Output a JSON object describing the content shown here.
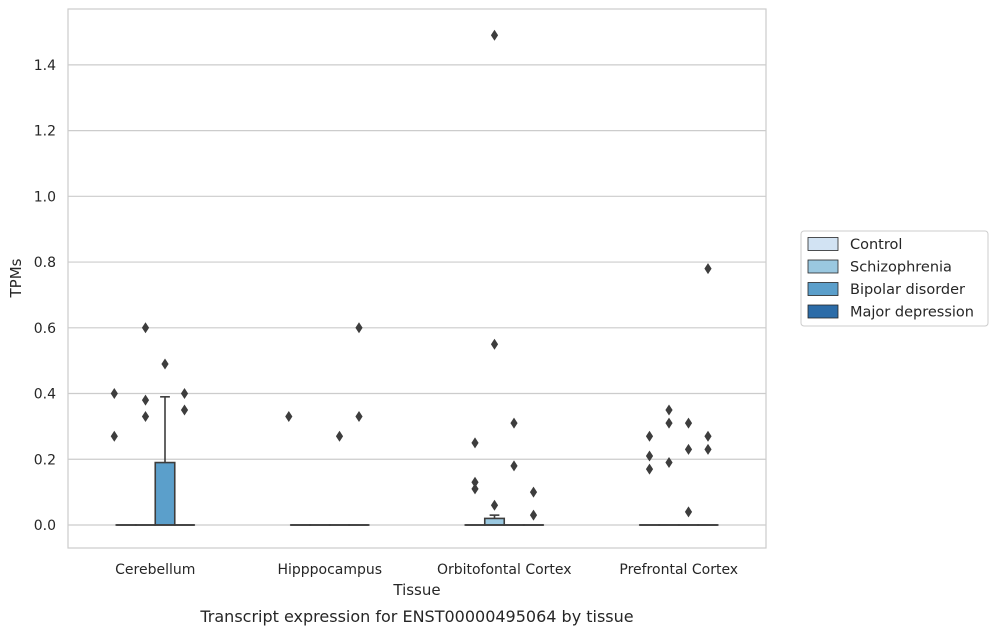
{
  "chart_data": {
    "type": "box",
    "title": "",
    "caption": "Transcript expression for ENST00000495064 by tissue",
    "xlabel": "Tissue",
    "ylabel": "TPMs",
    "ylim": [
      -0.07,
      1.57
    ],
    "yticks": [
      0.0,
      0.2,
      0.4,
      0.6,
      0.8,
      1.0,
      1.2,
      1.4
    ],
    "yticklabels": [
      "0.0",
      "0.2",
      "0.4",
      "0.6",
      "0.8",
      "1.0",
      "1.2",
      "1.4"
    ],
    "grid": "horizontal",
    "legend_position": "right",
    "categories": [
      "Cerebellum",
      "Hipppocampus",
      "Orbitofontal Cortex",
      "Prefrontal Cortex"
    ],
    "series": [
      {
        "name": "Control",
        "color": "#d2e3f3",
        "boxes": [
          {
            "category": "Cerebellum",
            "q1": 0,
            "median": 0,
            "q3": 0,
            "whisker_low": 0,
            "whisker_high": 0,
            "outliers": [
              {
                "y": 0.27,
                "jitter": -0.6
              },
              {
                "y": 0.4,
                "jitter": -0.6
              }
            ]
          },
          {
            "category": "Hipppocampus",
            "q1": 0,
            "median": 0,
            "q3": 0,
            "whisker_low": 0,
            "whisker_high": 0,
            "outliers": [
              {
                "y": 0.33,
                "jitter": -0.6
              }
            ]
          },
          {
            "category": "Orbitofontal Cortex",
            "q1": 0,
            "median": 0,
            "q3": 0,
            "whisker_low": 0,
            "whisker_high": 0,
            "outliers": [
              {
                "y": 0.11,
                "jitter": 0
              },
              {
                "y": 0.13,
                "jitter": 0
              },
              {
                "y": 0.25,
                "jitter": 0
              }
            ]
          },
          {
            "category": "Prefrontal Cortex",
            "q1": 0,
            "median": 0,
            "q3": 0,
            "whisker_low": 0,
            "whisker_high": 0,
            "outliers": [
              {
                "y": 0.17,
                "jitter": 0
              },
              {
                "y": 0.21,
                "jitter": 0
              },
              {
                "y": 0.27,
                "jitter": 0
              }
            ]
          }
        ]
      },
      {
        "name": "Schizophrenia",
        "color": "#9ac8e0",
        "boxes": [
          {
            "category": "Cerebellum",
            "q1": 0,
            "median": 0,
            "q3": 0,
            "whisker_low": 0,
            "whisker_high": 0,
            "outliers": [
              {
                "y": 0.33,
                "jitter": 0
              },
              {
                "y": 0.38,
                "jitter": 0
              },
              {
                "y": 0.6,
                "jitter": 0
              }
            ]
          },
          {
            "category": "Hipppocampus",
            "q1": 0,
            "median": 0,
            "q3": 0,
            "whisker_low": 0,
            "whisker_high": 0,
            "outliers": []
          },
          {
            "category": "Orbitofontal Cortex",
            "q1": 0,
            "median": 0,
            "q3": 0.02,
            "whisker_low": 0,
            "whisker_high": 0.03,
            "outliers": [
              {
                "y": 0.06,
                "jitter": 0
              },
              {
                "y": 0.55,
                "jitter": 0
              },
              {
                "y": 1.49,
                "jitter": 0
              }
            ]
          },
          {
            "category": "Prefrontal Cortex",
            "q1": 0,
            "median": 0,
            "q3": 0,
            "whisker_low": 0,
            "whisker_high": 0,
            "outliers": [
              {
                "y": 0.19,
                "jitter": 0
              },
              {
                "y": 0.31,
                "jitter": 0
              },
              {
                "y": 0.35,
                "jitter": 0
              }
            ]
          }
        ]
      },
      {
        "name": "Bipolar disorder",
        "color": "#5b9fcb",
        "boxes": [
          {
            "category": "Cerebellum",
            "q1": 0,
            "median": 0,
            "q3": 0.19,
            "whisker_low": 0,
            "whisker_high": 0.39,
            "outliers": [
              {
                "y": 0.49,
                "jitter": 0
              }
            ]
          },
          {
            "category": "Hipppocampus",
            "q1": 0,
            "median": 0,
            "q3": 0,
            "whisker_low": 0,
            "whisker_high": 0,
            "outliers": [
              {
                "y": 0.27,
                "jitter": 0
              }
            ]
          },
          {
            "category": "Orbitofontal Cortex",
            "q1": 0,
            "median": 0,
            "q3": 0,
            "whisker_low": 0,
            "whisker_high": 0,
            "outliers": [
              {
                "y": 0.18,
                "jitter": 0
              },
              {
                "y": 0.31,
                "jitter": 0
              }
            ]
          },
          {
            "category": "Prefrontal Cortex",
            "q1": 0,
            "median": 0,
            "q3": 0,
            "whisker_low": 0,
            "whisker_high": 0,
            "outliers": [
              {
                "y": 0.04,
                "jitter": 0
              },
              {
                "y": 0.23,
                "jitter": 0
              },
              {
                "y": 0.31,
                "jitter": 0
              }
            ]
          }
        ]
      },
      {
        "name": "Major depression",
        "color": "#2c6ca8",
        "boxes": [
          {
            "category": "Cerebellum",
            "q1": 0,
            "median": 0,
            "q3": 0,
            "whisker_low": 0,
            "whisker_high": 0,
            "outliers": [
              {
                "y": 0.35,
                "jitter": 0
              },
              {
                "y": 0.4,
                "jitter": 0
              }
            ]
          },
          {
            "category": "Hipppocampus",
            "q1": 0,
            "median": 0,
            "q3": 0,
            "whisker_low": 0,
            "whisker_high": 0,
            "outliers": [
              {
                "y": 0.33,
                "jitter": 0
              },
              {
                "y": 0.6,
                "jitter": 0
              }
            ]
          },
          {
            "category": "Orbitofontal Cortex",
            "q1": 0,
            "median": 0,
            "q3": 0,
            "whisker_low": 0,
            "whisker_high": 0,
            "outliers": [
              {
                "y": 0.03,
                "jitter": 0
              },
              {
                "y": 0.1,
                "jitter": 0
              }
            ]
          },
          {
            "category": "Prefrontal Cortex",
            "q1": 0,
            "median": 0,
            "q3": 0,
            "whisker_low": 0,
            "whisker_high": 0,
            "outliers": [
              {
                "y": 0.23,
                "jitter": 0
              },
              {
                "y": 0.27,
                "jitter": 0
              },
              {
                "y": 0.78,
                "jitter": 0
              }
            ]
          }
        ]
      }
    ]
  }
}
